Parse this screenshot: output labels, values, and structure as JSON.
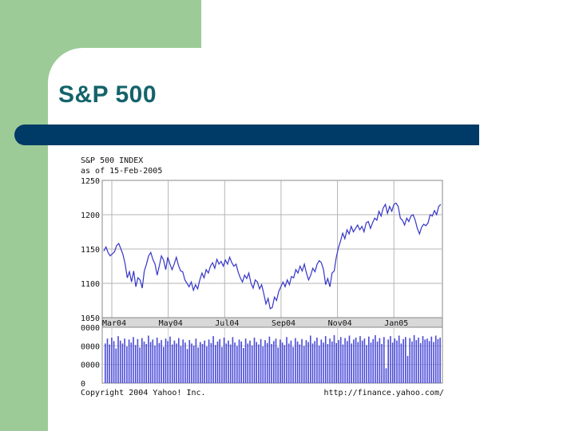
{
  "slide": {
    "title": "S&P 500"
  },
  "colors": {
    "background_left": "#9dcb97",
    "title_text": "#14636b",
    "title_bar": "#003a66",
    "price_line": "#3535c8",
    "volume_bars": "#4a4ad8",
    "grid": "#b4b4b4",
    "axis_strip": "#d8d8d8"
  },
  "chart_data": {
    "type": "line",
    "title": "S&P 500 INDEX",
    "subtitle": "as of 15-Feb-2005",
    "x_tick_labels": [
      "Mar04",
      "May04",
      "Jul04",
      "Sep04",
      "Nov04",
      "Jan05"
    ],
    "y_tick_labels": [
      "1250",
      "1200",
      "1150",
      "1100",
      "1050"
    ],
    "ylim": [
      1050,
      1250
    ],
    "grid": true,
    "series": [
      {
        "values": [
          1147,
          1153,
          1145,
          1140,
          1143,
          1146,
          1155,
          1158,
          1150,
          1142,
          1128,
          1108,
          1117,
          1102,
          1118,
          1095,
          1108,
          1105,
          1093,
          1118,
          1128,
          1140,
          1145,
          1135,
          1128,
          1112,
          1125,
          1140,
          1134,
          1120,
          1138,
          1128,
          1120,
          1128,
          1138,
          1126,
          1118,
          1117,
          1105,
          1100,
          1095,
          1102,
          1090,
          1098,
          1092,
          1105,
          1115,
          1108,
          1120,
          1115,
          1125,
          1130,
          1122,
          1135,
          1128,
          1132,
          1125,
          1134,
          1128,
          1138,
          1130,
          1125,
          1128,
          1116,
          1108,
          1102,
          1112,
          1107,
          1115,
          1100,
          1093,
          1105,
          1102,
          1092,
          1098,
          1085,
          1070,
          1078,
          1063,
          1065,
          1080,
          1075,
          1088,
          1095,
          1102,
          1095,
          1105,
          1098,
          1110,
          1108,
          1120,
          1115,
          1125,
          1118,
          1128,
          1115,
          1105,
          1112,
          1122,
          1117,
          1128,
          1133,
          1130,
          1120,
          1098,
          1107,
          1095,
          1115,
          1118,
          1138,
          1152,
          1162,
          1173,
          1165,
          1178,
          1172,
          1183,
          1175,
          1180,
          1185,
          1178,
          1183,
          1175,
          1188,
          1190,
          1180,
          1188,
          1195,
          1192,
          1205,
          1198,
          1210,
          1215,
          1202,
          1212,
          1205,
          1215,
          1217,
          1212,
          1195,
          1192,
          1185,
          1195,
          1190,
          1198,
          1200,
          1192,
          1180,
          1172,
          1182,
          1186,
          1184,
          1188,
          1200,
          1198,
          1206,
          1200,
          1212,
          1215
        ]
      }
    ],
    "volume": {
      "y_tick_labels": [
        "0000",
        "0000",
        "0000",
        "0"
      ],
      "values": [
        0.8,
        0.9,
        0.78,
        0.92,
        0.85,
        0.7,
        0.95,
        0.86,
        0.8,
        0.9,
        0.74,
        0.88,
        0.82,
        0.93,
        0.77,
        0.89,
        0.72,
        0.91,
        0.84,
        0.79,
        0.96,
        0.83,
        0.88,
        0.76,
        0.92,
        0.81,
        0.87,
        0.73,
        0.9,
        0.85,
        0.94,
        0.78,
        0.86,
        0.8,
        0.91,
        0.75,
        0.88,
        0.82,
        0.69,
        0.87,
        0.8,
        0.76,
        0.9,
        0.72,
        0.83,
        0.79,
        0.86,
        0.74,
        0.88,
        0.81,
        0.95,
        0.77,
        0.84,
        0.89,
        0.73,
        0.92,
        0.8,
        0.86,
        0.78,
        0.93,
        0.82,
        0.75,
        0.88,
        0.84,
        0.71,
        0.9,
        0.8,
        0.86,
        0.76,
        0.92,
        0.83,
        0.78,
        0.89,
        0.74,
        0.87,
        0.81,
        0.94,
        0.79,
        0.85,
        0.9,
        0.72,
        0.88,
        0.82,
        0.77,
        0.93,
        0.8,
        0.86,
        0.73,
        0.91,
        0.84,
        0.78,
        0.89,
        0.75,
        0.87,
        0.83,
        0.96,
        0.8,
        0.85,
        0.92,
        0.76,
        0.88,
        0.82,
        0.95,
        0.79,
        0.9,
        0.84,
        0.97,
        0.81,
        0.87,
        0.93,
        0.78,
        0.91,
        0.85,
        0.96,
        0.8,
        0.88,
        0.92,
        0.83,
        0.95,
        0.86,
        0.9,
        0.77,
        0.94,
        0.82,
        0.89,
        0.97,
        0.84,
        0.91,
        0.79,
        0.93,
        0.3,
        0.88,
        0.95,
        0.82,
        0.9,
        0.86,
        0.96,
        0.8,
        0.89,
        0.93,
        0.55,
        0.91,
        0.84,
        0.97,
        0.87,
        0.92,
        0.81,
        0.95,
        0.88,
        0.9,
        0.85,
        0.94,
        0.83,
        0.96,
        0.89,
        0.92
      ]
    },
    "footer_left": "Copyright 2004 Yahoo! Inc.",
    "footer_right": "http://finance.yahoo.com/"
  }
}
